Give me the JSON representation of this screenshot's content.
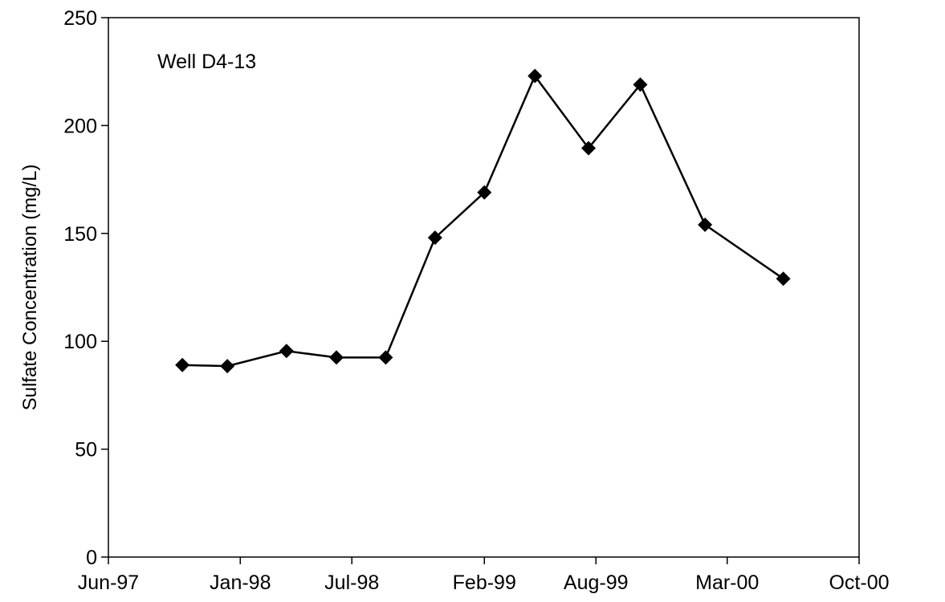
{
  "chart_data": {
    "type": "line",
    "title": "",
    "xlabel": "",
    "ylabel": "Sulfate Concentration (mg/L)",
    "annotation": "Well D4-13",
    "grid": false,
    "legend": "none",
    "xlim": [
      "1997-06-01",
      "2000-10-01"
    ],
    "ylim": [
      0,
      250
    ],
    "x_ticks": [
      {
        "date": "1997-06-01",
        "label": "Jun-97"
      },
      {
        "date": "1998-01-01",
        "label": "Jan-98"
      },
      {
        "date": "1998-07-01",
        "label": "Jul-98"
      },
      {
        "date": "1999-02-01",
        "label": "Feb-99"
      },
      {
        "date": "1999-08-01",
        "label": "Aug-99"
      },
      {
        "date": "2000-03-01",
        "label": "Mar-00"
      },
      {
        "date": "2000-10-01",
        "label": "Oct-00"
      }
    ],
    "y_ticks": [
      0,
      50,
      100,
      150,
      200,
      250
    ],
    "colors": {
      "line": "#000000",
      "marker": "#000000"
    },
    "series": [
      {
        "x": [
          "1997-09-29",
          "1997-12-11",
          "1998-03-17",
          "1998-06-06",
          "1998-08-25",
          "1998-11-13",
          "1999-02-01",
          "1999-04-24",
          "1999-07-20",
          "1999-10-12",
          "2000-01-25",
          "2000-05-31"
        ],
        "y": [
          89,
          88.5,
          95.5,
          92.5,
          92.5,
          148,
          169,
          223,
          189.5,
          219,
          154,
          129
        ]
      }
    ]
  }
}
